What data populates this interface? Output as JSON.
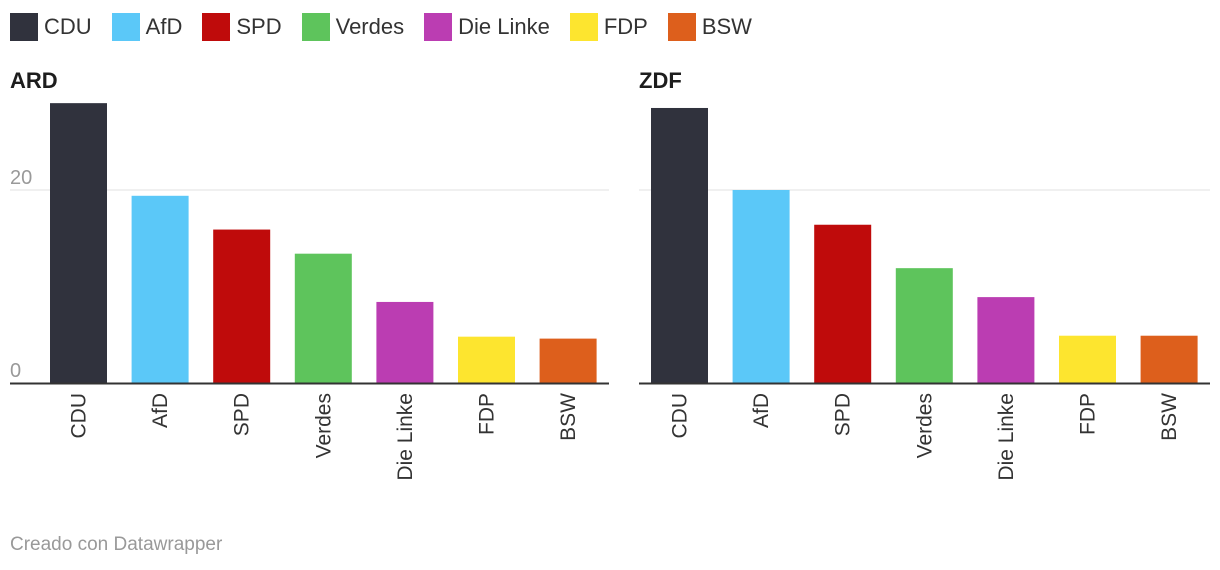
{
  "legend": [
    {
      "label": "CDU",
      "color": "#30323d"
    },
    {
      "label": "AfD",
      "color": "#5bc8f8"
    },
    {
      "label": "SPD",
      "color": "#bf0b0b"
    },
    {
      "label": "Verdes",
      "color": "#5ec45c"
    },
    {
      "label": "Die Linke",
      "color": "#bb3db2"
    },
    {
      "label": "FDP",
      "color": "#fde52f"
    },
    {
      "label": "BSW",
      "color": "#dd5f1c"
    }
  ],
  "chart_data": [
    {
      "type": "bar",
      "title": "ARD",
      "categories": [
        "CDU",
        "AfD",
        "SPD",
        "Verdes",
        "Die Linke",
        "FDP",
        "BSW"
      ],
      "values": [
        29.0,
        19.4,
        15.9,
        13.4,
        8.4,
        4.8,
        4.6
      ],
      "colors": [
        "#30323d",
        "#5bc8f8",
        "#bf0b0b",
        "#5ec45c",
        "#bb3db2",
        "#fde52f",
        "#dd5f1c"
      ],
      "yticks": [
        "0",
        "20"
      ],
      "ylim": [
        0,
        29
      ],
      "grid": true
    },
    {
      "type": "bar",
      "title": "ZDF",
      "categories": [
        "CDU",
        "AfD",
        "SPD",
        "Verdes",
        "Die Linke",
        "FDP",
        "BSW"
      ],
      "values": [
        28.5,
        20.0,
        16.4,
        11.9,
        8.9,
        4.9,
        4.9
      ],
      "colors": [
        "#30323d",
        "#5bc8f8",
        "#bf0b0b",
        "#5ec45c",
        "#bb3db2",
        "#fde52f",
        "#dd5f1c"
      ],
      "yticks": [
        "0",
        "20"
      ],
      "ylim": [
        0,
        29
      ],
      "grid": true
    }
  ],
  "footer": "Creado con Datawrapper"
}
